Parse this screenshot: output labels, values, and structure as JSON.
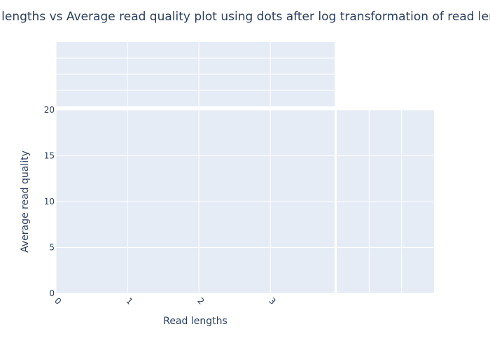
{
  "chart_data": {
    "type": "scatter",
    "title": "Read lengths vs Average read quality plot using dots after log transformation of read lengths",
    "xlabel": "Read lengths",
    "ylabel": "Average read quality",
    "x": [],
    "y": [],
    "xlim": [
      0,
      3.9
    ],
    "ylim": [
      0,
      20
    ],
    "x_ticks": [
      "0",
      "1",
      "2",
      "3"
    ],
    "y_ticks": [
      "0",
      "5",
      "10",
      "15",
      "20"
    ],
    "grid": true,
    "marginal_plots": true,
    "colors": {
      "panel_background": "#e5ecf6",
      "grid": "#ffffff",
      "text": "#2a3f5f"
    }
  }
}
